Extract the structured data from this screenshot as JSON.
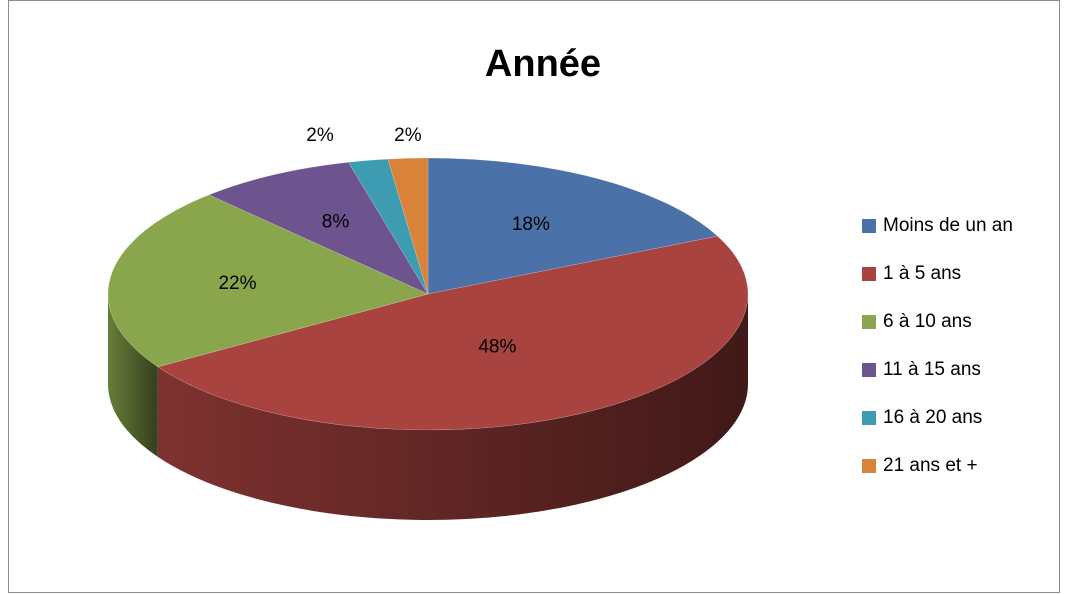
{
  "chart_data": {
    "type": "pie",
    "title": "Année",
    "categories": [
      "Moins de un an",
      "1 à 5 ans",
      "6 à 10 ans",
      "11 à 15 ans",
      "16 à 20 ans",
      "21 ans et +"
    ],
    "values": [
      18,
      48,
      22,
      8,
      2,
      2
    ],
    "value_labels": [
      "18%",
      "48%",
      "22%",
      "8%",
      "2%",
      "2%"
    ],
    "colors": [
      "#4a72a8",
      "#a84340",
      "#8aa64c",
      "#6e548f",
      "#3d9bb2",
      "#d9823a"
    ],
    "legend": "right"
  }
}
